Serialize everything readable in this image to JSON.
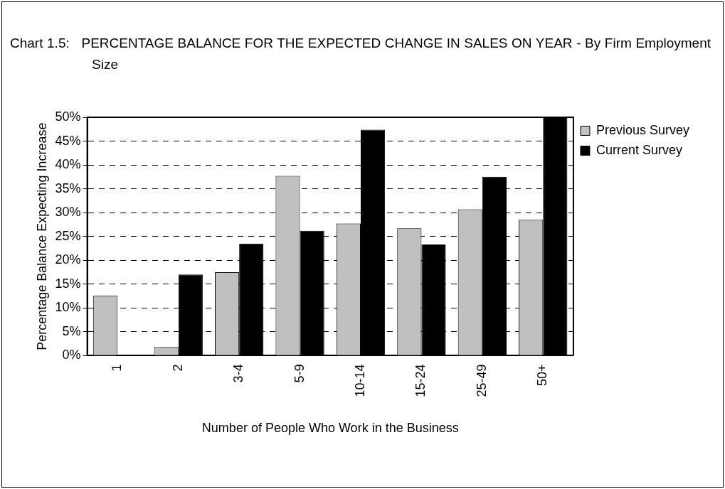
{
  "chart_data": {
    "type": "bar",
    "title": "Chart 1.5:   PERCENTAGE BALANCE FOR THE EXPECTED CHANGE IN SALES ON YEAR - By Firm Employment Size",
    "xlabel": "Number of People Who Work in the Business",
    "ylabel": "Percentage Balance Expecting Increase",
    "categories": [
      "1",
      "2",
      "3-4",
      "5-9",
      "10-14",
      "15-24",
      "25-49",
      "50+"
    ],
    "series": [
      {
        "name": "Previous Survey",
        "color": "#c0c0c0",
        "values": [
          12.6,
          1.8,
          17.5,
          37.7,
          27.7,
          26.7,
          30.7,
          28.5
        ]
      },
      {
        "name": "Current Survey",
        "color": "#000000",
        "values": [
          0,
          17,
          23.5,
          26.2,
          47.4,
          23.3,
          37.5,
          50
        ]
      }
    ],
    "ylim": [
      0,
      50
    ],
    "yticks": [
      {
        "value": 0,
        "label": "0%"
      },
      {
        "value": 5,
        "label": "5%"
      },
      {
        "value": 10,
        "label": "10%"
      },
      {
        "value": 15,
        "label": "15%"
      },
      {
        "value": 20,
        "label": "20%"
      },
      {
        "value": 25,
        "label": "25%"
      },
      {
        "value": 30,
        "label": "30%"
      },
      {
        "value": 35,
        "label": "35%"
      },
      {
        "value": 40,
        "label": "40%"
      },
      {
        "value": 45,
        "label": "45%"
      },
      {
        "value": 50,
        "label": "50%"
      }
    ],
    "grid": "y",
    "legend": "right"
  }
}
